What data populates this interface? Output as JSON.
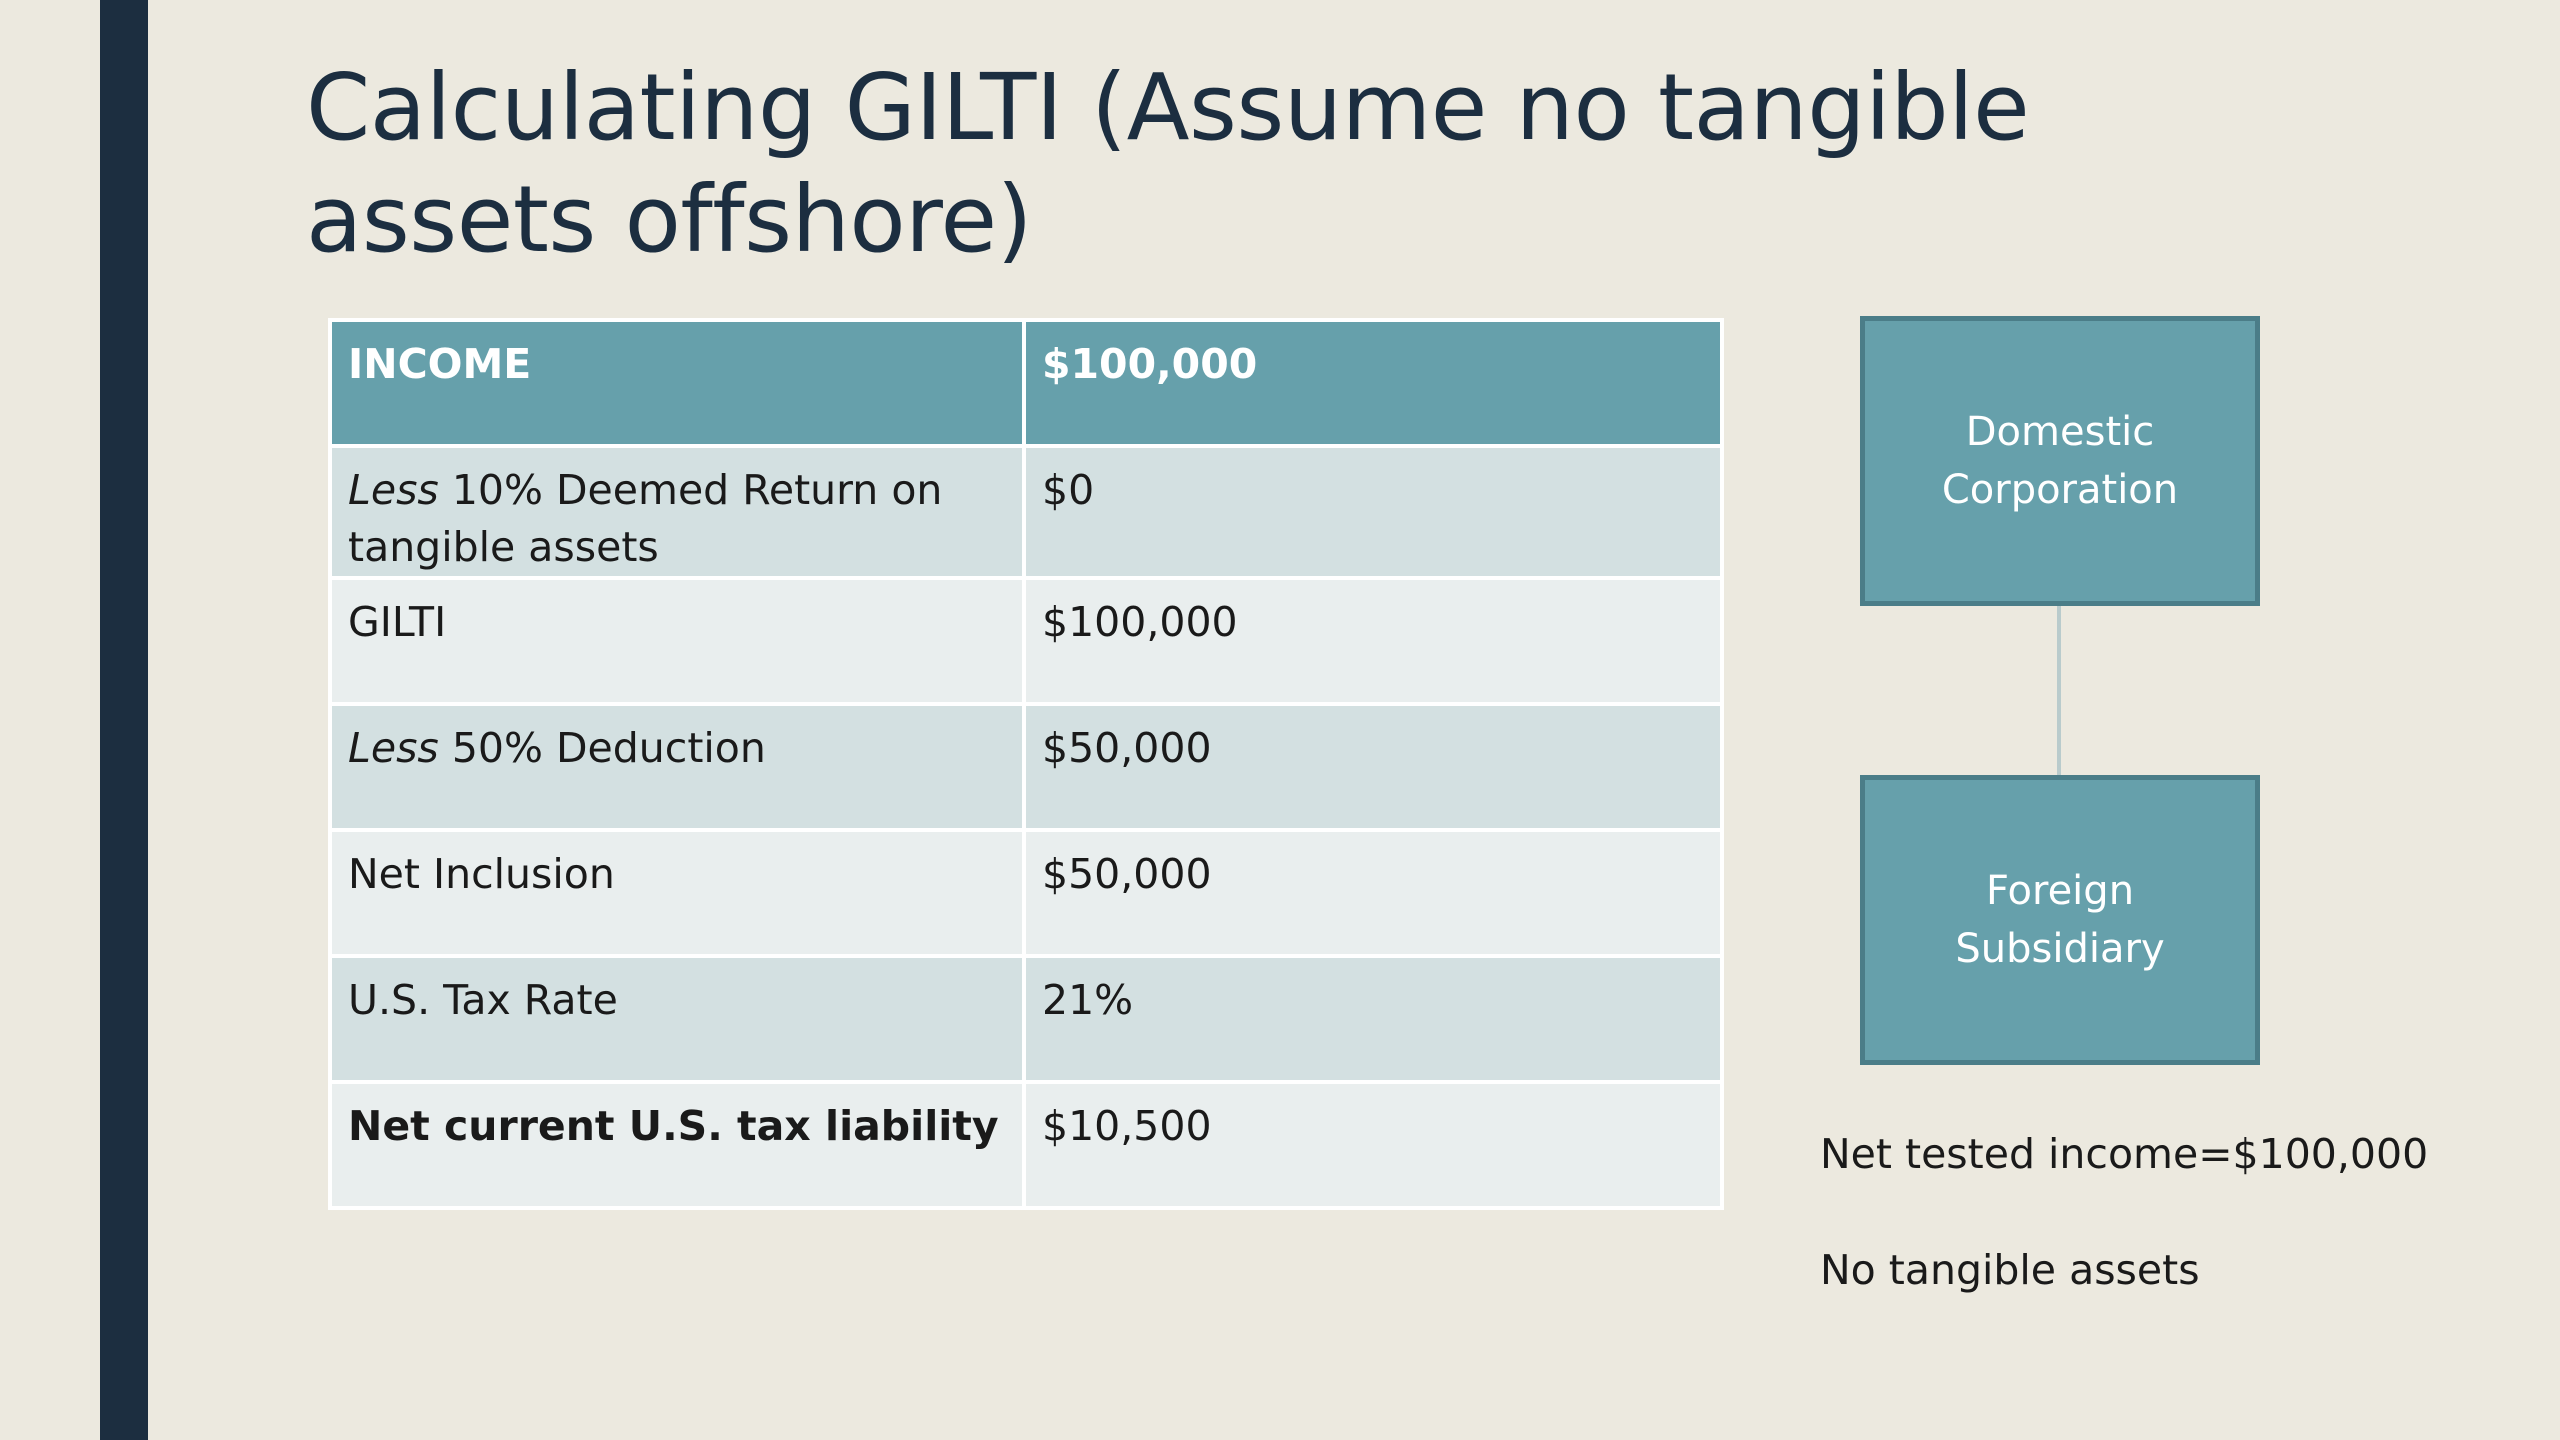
{
  "slide": {
    "title": "Calculating GILTI (Assume no tangible assets offshore)"
  },
  "table": {
    "header": {
      "label": "INCOME",
      "value": "$100,000"
    },
    "rows": [
      {
        "label_prefix": "Less",
        "label_rest": " 10% Deemed Return on tangible assets",
        "value": "$0"
      },
      {
        "label": "GILTI",
        "value": "$100,000"
      },
      {
        "label_prefix": "Less",
        "label_rest": " 50% Deduction",
        "value": "$50,000"
      },
      {
        "label": "Net Inclusion",
        "value": "$50,000"
      },
      {
        "label": "U.S. Tax Rate",
        "value": "21%"
      },
      {
        "label": "Net current U.S. tax liability",
        "value": "$10,500"
      }
    ]
  },
  "diagram": {
    "parent_line1": "Domestic",
    "parent_line2": "Corporation",
    "child_line1": "Foreign",
    "child_line2": "Subsidiary"
  },
  "notes": {
    "net_tested_income": "Net tested income=$100,000",
    "tangible_assets": "No tangible assets"
  },
  "colors": {
    "background": "#ece9df",
    "accent_bar": "#1c2e40",
    "table_header": "#66a0ab",
    "row_dark": "#d3e0e1",
    "row_light": "#e9eeee",
    "box_fill": "#66a0ab",
    "box_border": "#4b7d88"
  }
}
